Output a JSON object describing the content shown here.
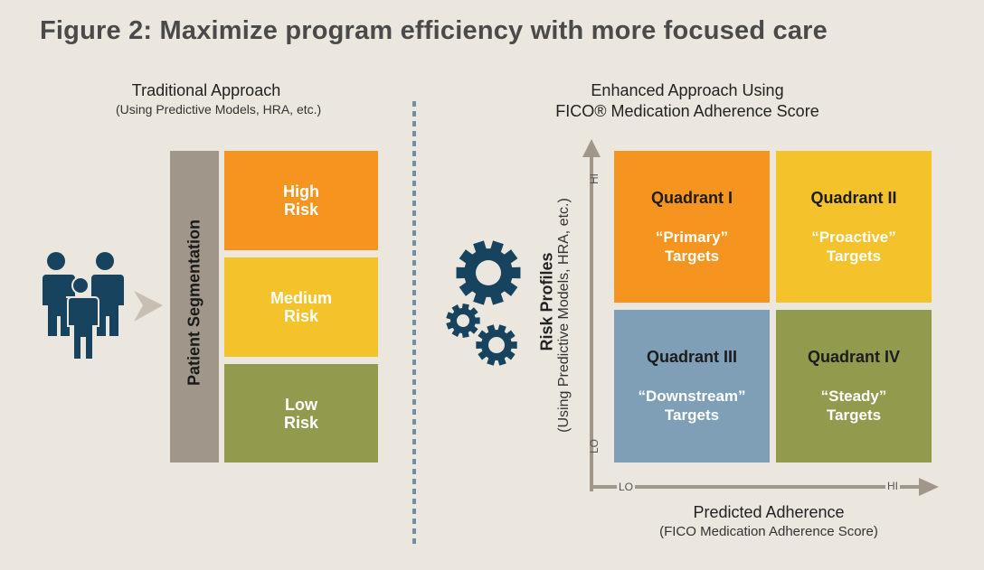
{
  "title": "Figure 2: Maximize program efficiency with more focused care",
  "left": {
    "heading": "Traditional Approach",
    "subheading": "(Using Predictive Models, HRA, etc.)",
    "segmentation_label": "Patient Segmentation",
    "risks": [
      {
        "line1": "High",
        "line2": "Risk",
        "color": "#f5951f"
      },
      {
        "line1": "Medium",
        "line2": "Risk",
        "color": "#f4c22b"
      },
      {
        "line1": "Low",
        "line2": "Risk",
        "color": "#929a4e"
      }
    ],
    "icon": "people-group-icon"
  },
  "right": {
    "heading_line1": "Enhanced Approach Using",
    "heading_line2": "FICO® Medication Adherence Score",
    "icon": "gears-icon",
    "y_axis_label": "Risk Profiles",
    "y_axis_sublabel": "(Using Predictive Models, HRA, etc.)",
    "y_hi": "HI",
    "y_lo": "LO",
    "x_lo": "LO",
    "x_hi": "HI",
    "x_axis_label": "Predicted Adherence",
    "x_axis_sublabel": "(FICO Medication Adherence Score)",
    "quadrants": [
      {
        "title": "Quadrant I",
        "sub1": "“Primary”",
        "sub2": "Targets",
        "color": "#f5951f",
        "sub_color": "#ffffff"
      },
      {
        "title": "Quadrant II",
        "sub1": "“Proactive”",
        "sub2": "Targets",
        "color": "#f4c22b",
        "sub_color": "#ffffff"
      },
      {
        "title": "Quadrant III",
        "sub1": "“Downstream”",
        "sub2": "Targets",
        "color": "#7e9fb5",
        "sub_color": "#ffffff"
      },
      {
        "title": "Quadrant IV",
        "sub1": "“Steady”",
        "sub2": "Targets",
        "color": "#929a4e",
        "sub_color": "#ffffff"
      }
    ]
  },
  "colors": {
    "navy": "#17435f",
    "axis": "#a0968a",
    "divider": "#6f8fa8"
  }
}
